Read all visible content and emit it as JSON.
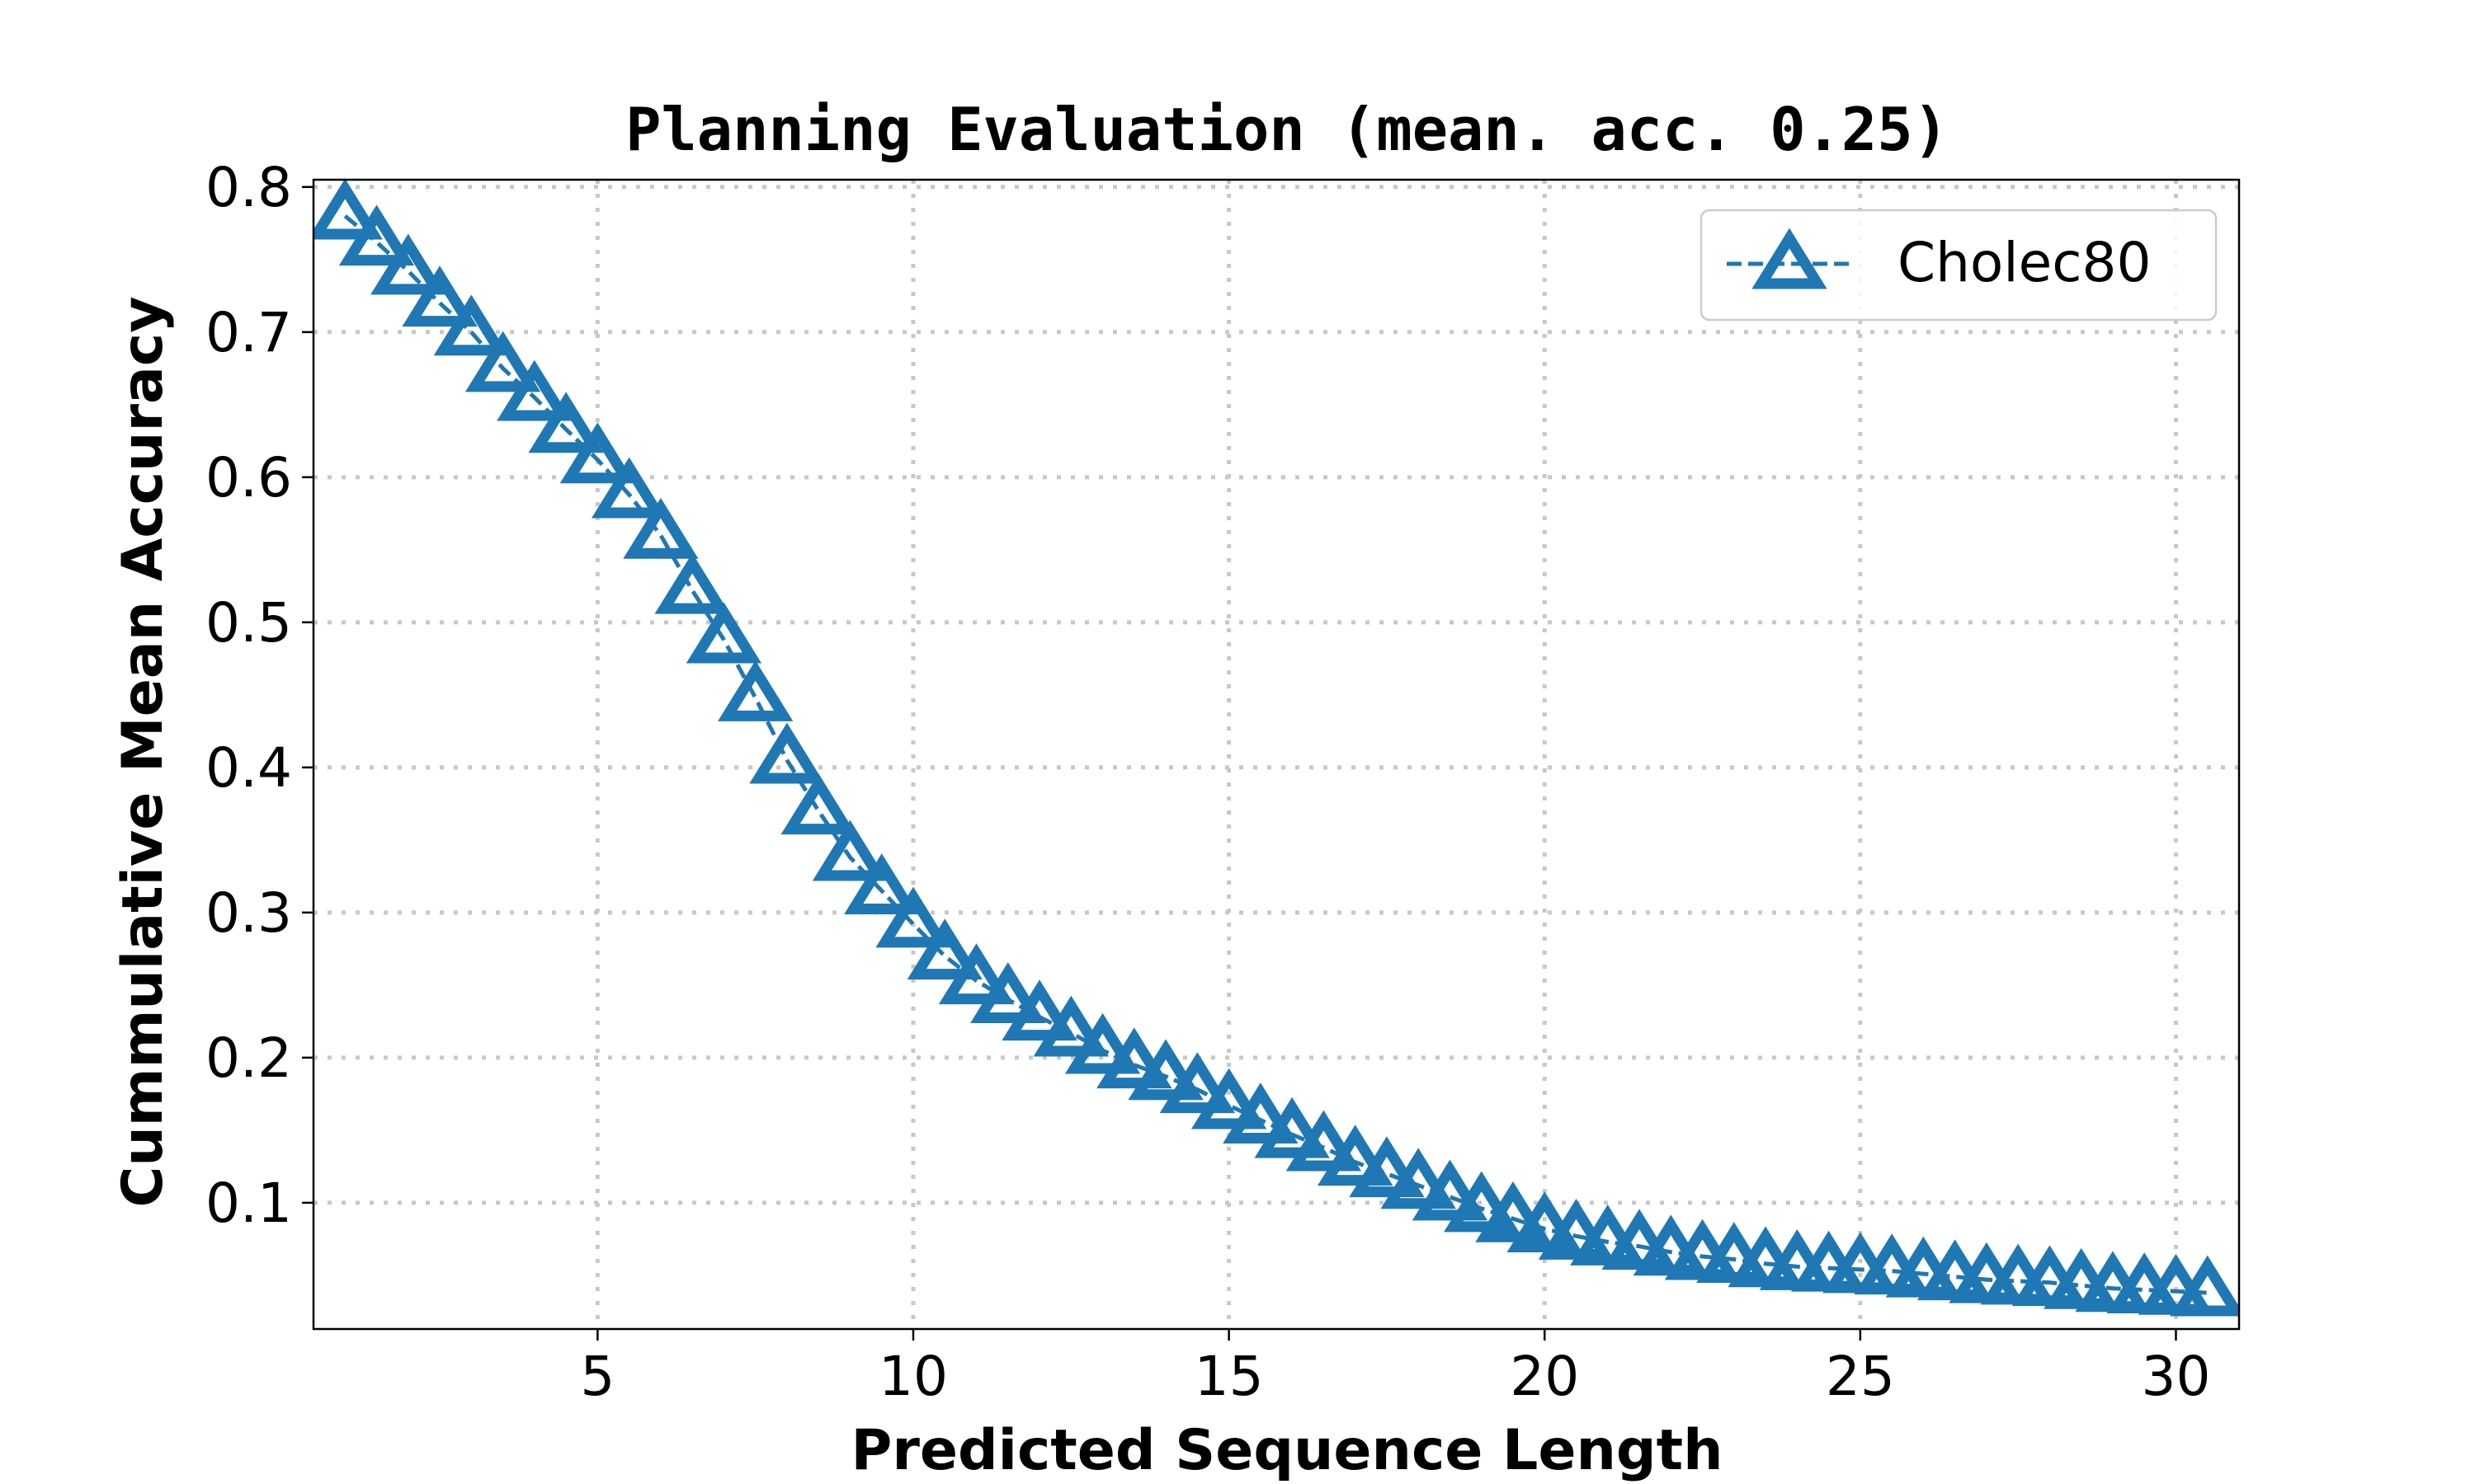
{
  "chart_data": {
    "type": "line",
    "title": "Planning Evaluation (mean. acc. 0.25)",
    "xlabel": "Predicted Sequence Length",
    "ylabel": "Cummulative Mean Accuracy",
    "xlim": [
      0.5,
      31
    ],
    "ylim": [
      0.013,
      0.805
    ],
    "xticks": [
      5,
      10,
      15,
      20,
      25,
      30
    ],
    "yticks": [
      0.1,
      0.2,
      0.3,
      0.4,
      0.5,
      0.6,
      0.7,
      0.8
    ],
    "xtick_labels": [
      "5",
      "10",
      "15",
      "20",
      "25",
      "30"
    ],
    "ytick_labels": [
      "0.1",
      "0.2",
      "0.3",
      "0.4",
      "0.5",
      "0.6",
      "0.7",
      "0.8"
    ],
    "grid": true,
    "legend_position": "upper right",
    "series": [
      {
        "name": "Cholec80",
        "color": "#1f77b4",
        "marker": "triangle-up",
        "line_style": "dashed",
        "x": [
          1,
          1.5,
          2,
          2.5,
          3,
          3.5,
          4,
          4.5,
          5,
          5.5,
          6,
          6.5,
          7,
          7.5,
          8,
          8.5,
          9,
          9.5,
          10,
          10.5,
          11,
          11.5,
          12,
          12.5,
          13,
          13.5,
          14,
          14.5,
          15,
          15.5,
          16,
          16.5,
          17,
          17.5,
          18,
          18.5,
          19,
          19.5,
          20,
          20.5,
          21,
          21.5,
          22,
          22.5,
          23,
          23.5,
          24,
          24.5,
          25,
          25.5,
          26,
          26.5,
          27,
          27.5,
          28,
          28.5,
          29,
          29.5,
          30,
          30.5
        ],
        "y": [
          0.78,
          0.762,
          0.742,
          0.72,
          0.7,
          0.675,
          0.655,
          0.633,
          0.612,
          0.588,
          0.56,
          0.522,
          0.488,
          0.448,
          0.405,
          0.37,
          0.338,
          0.315,
          0.292,
          0.27,
          0.253,
          0.24,
          0.228,
          0.217,
          0.205,
          0.195,
          0.187,
          0.178,
          0.167,
          0.157,
          0.147,
          0.138,
          0.128,
          0.12,
          0.112,
          0.104,
          0.096,
          0.089,
          0.082,
          0.077,
          0.073,
          0.07,
          0.066,
          0.063,
          0.061,
          0.058,
          0.056,
          0.055,
          0.054,
          0.053,
          0.051,
          0.049,
          0.047,
          0.046,
          0.045,
          0.043,
          0.041,
          0.04,
          0.039,
          0.038
        ]
      }
    ]
  }
}
